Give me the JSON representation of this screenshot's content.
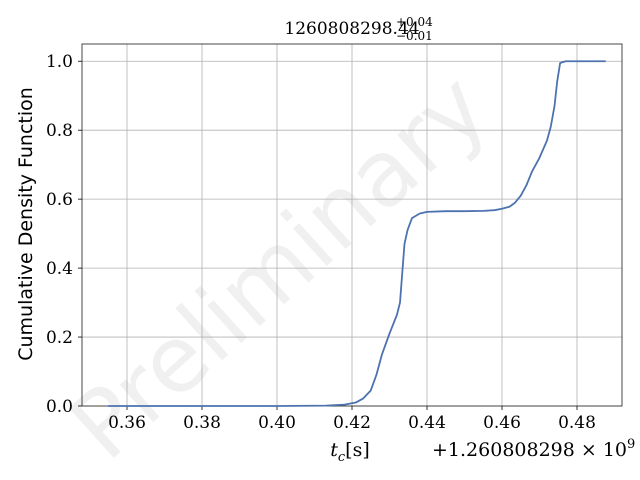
{
  "chart_data": {
    "type": "line",
    "title": {
      "main": "1260808298.44",
      "sup": "+0.04",
      "sub": "−0.01"
    },
    "xlabel": {
      "var": "t",
      "sub": "c",
      "unit": "[s]"
    },
    "ylabel": "Cumulative Density Function",
    "x_offset_label": {
      "text": "+1.260808298 × 10",
      "exp": "9"
    },
    "watermark": "Preliminary",
    "xlim": [
      0.348,
      0.492
    ],
    "ylim": [
      0.0,
      1.05
    ],
    "xticks": [
      0.36,
      0.38,
      0.4,
      0.42,
      0.44,
      0.46,
      0.48
    ],
    "xtick_labels": [
      "0.36",
      "0.38",
      "0.40",
      "0.42",
      "0.44",
      "0.46",
      "0.48"
    ],
    "yticks": [
      0.0,
      0.2,
      0.4,
      0.6,
      0.8,
      1.0
    ],
    "ytick_labels": [
      "0.0",
      "0.2",
      "0.4",
      "0.6",
      "0.8",
      "1.0"
    ],
    "grid": true,
    "series": [
      {
        "color": "#4c72b0",
        "x": [
          0.355,
          0.38,
          0.4,
          0.413,
          0.418,
          0.421,
          0.423,
          0.425,
          0.4265,
          0.428,
          0.43,
          0.432,
          0.4328,
          0.4335,
          0.434,
          0.4348,
          0.436,
          0.438,
          0.44,
          0.445,
          0.45,
          0.455,
          0.458,
          0.46,
          0.462,
          0.4635,
          0.465,
          0.4665,
          0.468,
          0.47,
          0.472,
          0.473,
          0.474,
          0.4747,
          0.4755,
          0.477,
          0.48,
          0.4875
        ],
        "y": [
          0.0,
          0.0,
          0.0,
          0.001,
          0.004,
          0.01,
          0.022,
          0.045,
          0.09,
          0.15,
          0.21,
          0.265,
          0.3,
          0.4,
          0.47,
          0.51,
          0.545,
          0.558,
          0.563,
          0.565,
          0.565,
          0.566,
          0.568,
          0.572,
          0.578,
          0.59,
          0.61,
          0.64,
          0.68,
          0.72,
          0.77,
          0.81,
          0.87,
          0.94,
          0.995,
          1.0,
          1.0,
          1.0
        ]
      }
    ]
  }
}
